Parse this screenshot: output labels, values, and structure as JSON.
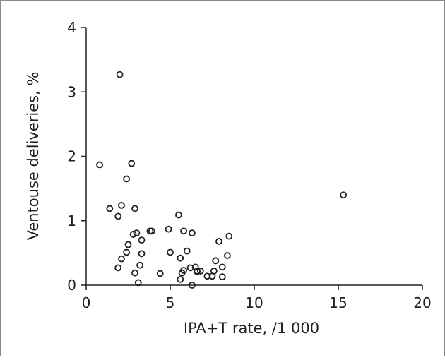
{
  "chart_data": {
    "type": "scatter",
    "title": "",
    "xlabel": "IPA+T rate, /1 000",
    "ylabel": "Ventouse deliveries, %",
    "xlim": [
      0,
      20
    ],
    "ylim": [
      0,
      4
    ],
    "x_ticks": [
      0,
      5,
      10,
      15,
      20
    ],
    "y_ticks": [
      0,
      1,
      2,
      3,
      4
    ],
    "x_tick_labels": [
      "0",
      "5",
      "10",
      "15",
      "20"
    ],
    "y_tick_labels": [
      "0",
      "1",
      "2",
      "3",
      "4"
    ],
    "grid": false,
    "marker": "open-circle",
    "color": "#231f20",
    "series": [
      {
        "x": [
          0.8,
          1.4,
          1.9,
          2.0,
          2.1,
          2.4,
          2.7,
          2.9,
          1.9,
          2.1,
          2.4,
          2.5,
          2.8,
          3.0,
          3.3,
          3.3,
          3.2,
          2.9,
          3.1,
          3.8,
          3.9,
          4.4,
          4.9,
          5.0,
          5.5,
          5.8,
          6.3,
          5.6,
          5.7,
          5.8,
          6.0,
          5.6,
          6.2,
          6.3,
          6.5,
          6.6,
          6.6,
          6.8,
          7.2,
          7.5,
          7.6,
          7.7,
          7.9,
          8.1,
          8.1,
          8.4,
          8.5,
          15.3
        ],
        "y": [
          1.87,
          1.19,
          1.07,
          3.27,
          1.24,
          1.65,
          1.89,
          1.19,
          0.27,
          0.41,
          0.51,
          0.63,
          0.79,
          0.81,
          0.7,
          0.49,
          0.31,
          0.19,
          0.04,
          0.84,
          0.84,
          0.18,
          0.87,
          0.51,
          1.09,
          0.84,
          0.81,
          0.42,
          0.19,
          0.23,
          0.53,
          0.09,
          0.27,
          0.0,
          0.28,
          0.21,
          0.22,
          0.22,
          0.14,
          0.14,
          0.22,
          0.38,
          0.68,
          0.28,
          0.13,
          0.46,
          0.76,
          1.4
        ]
      }
    ]
  }
}
